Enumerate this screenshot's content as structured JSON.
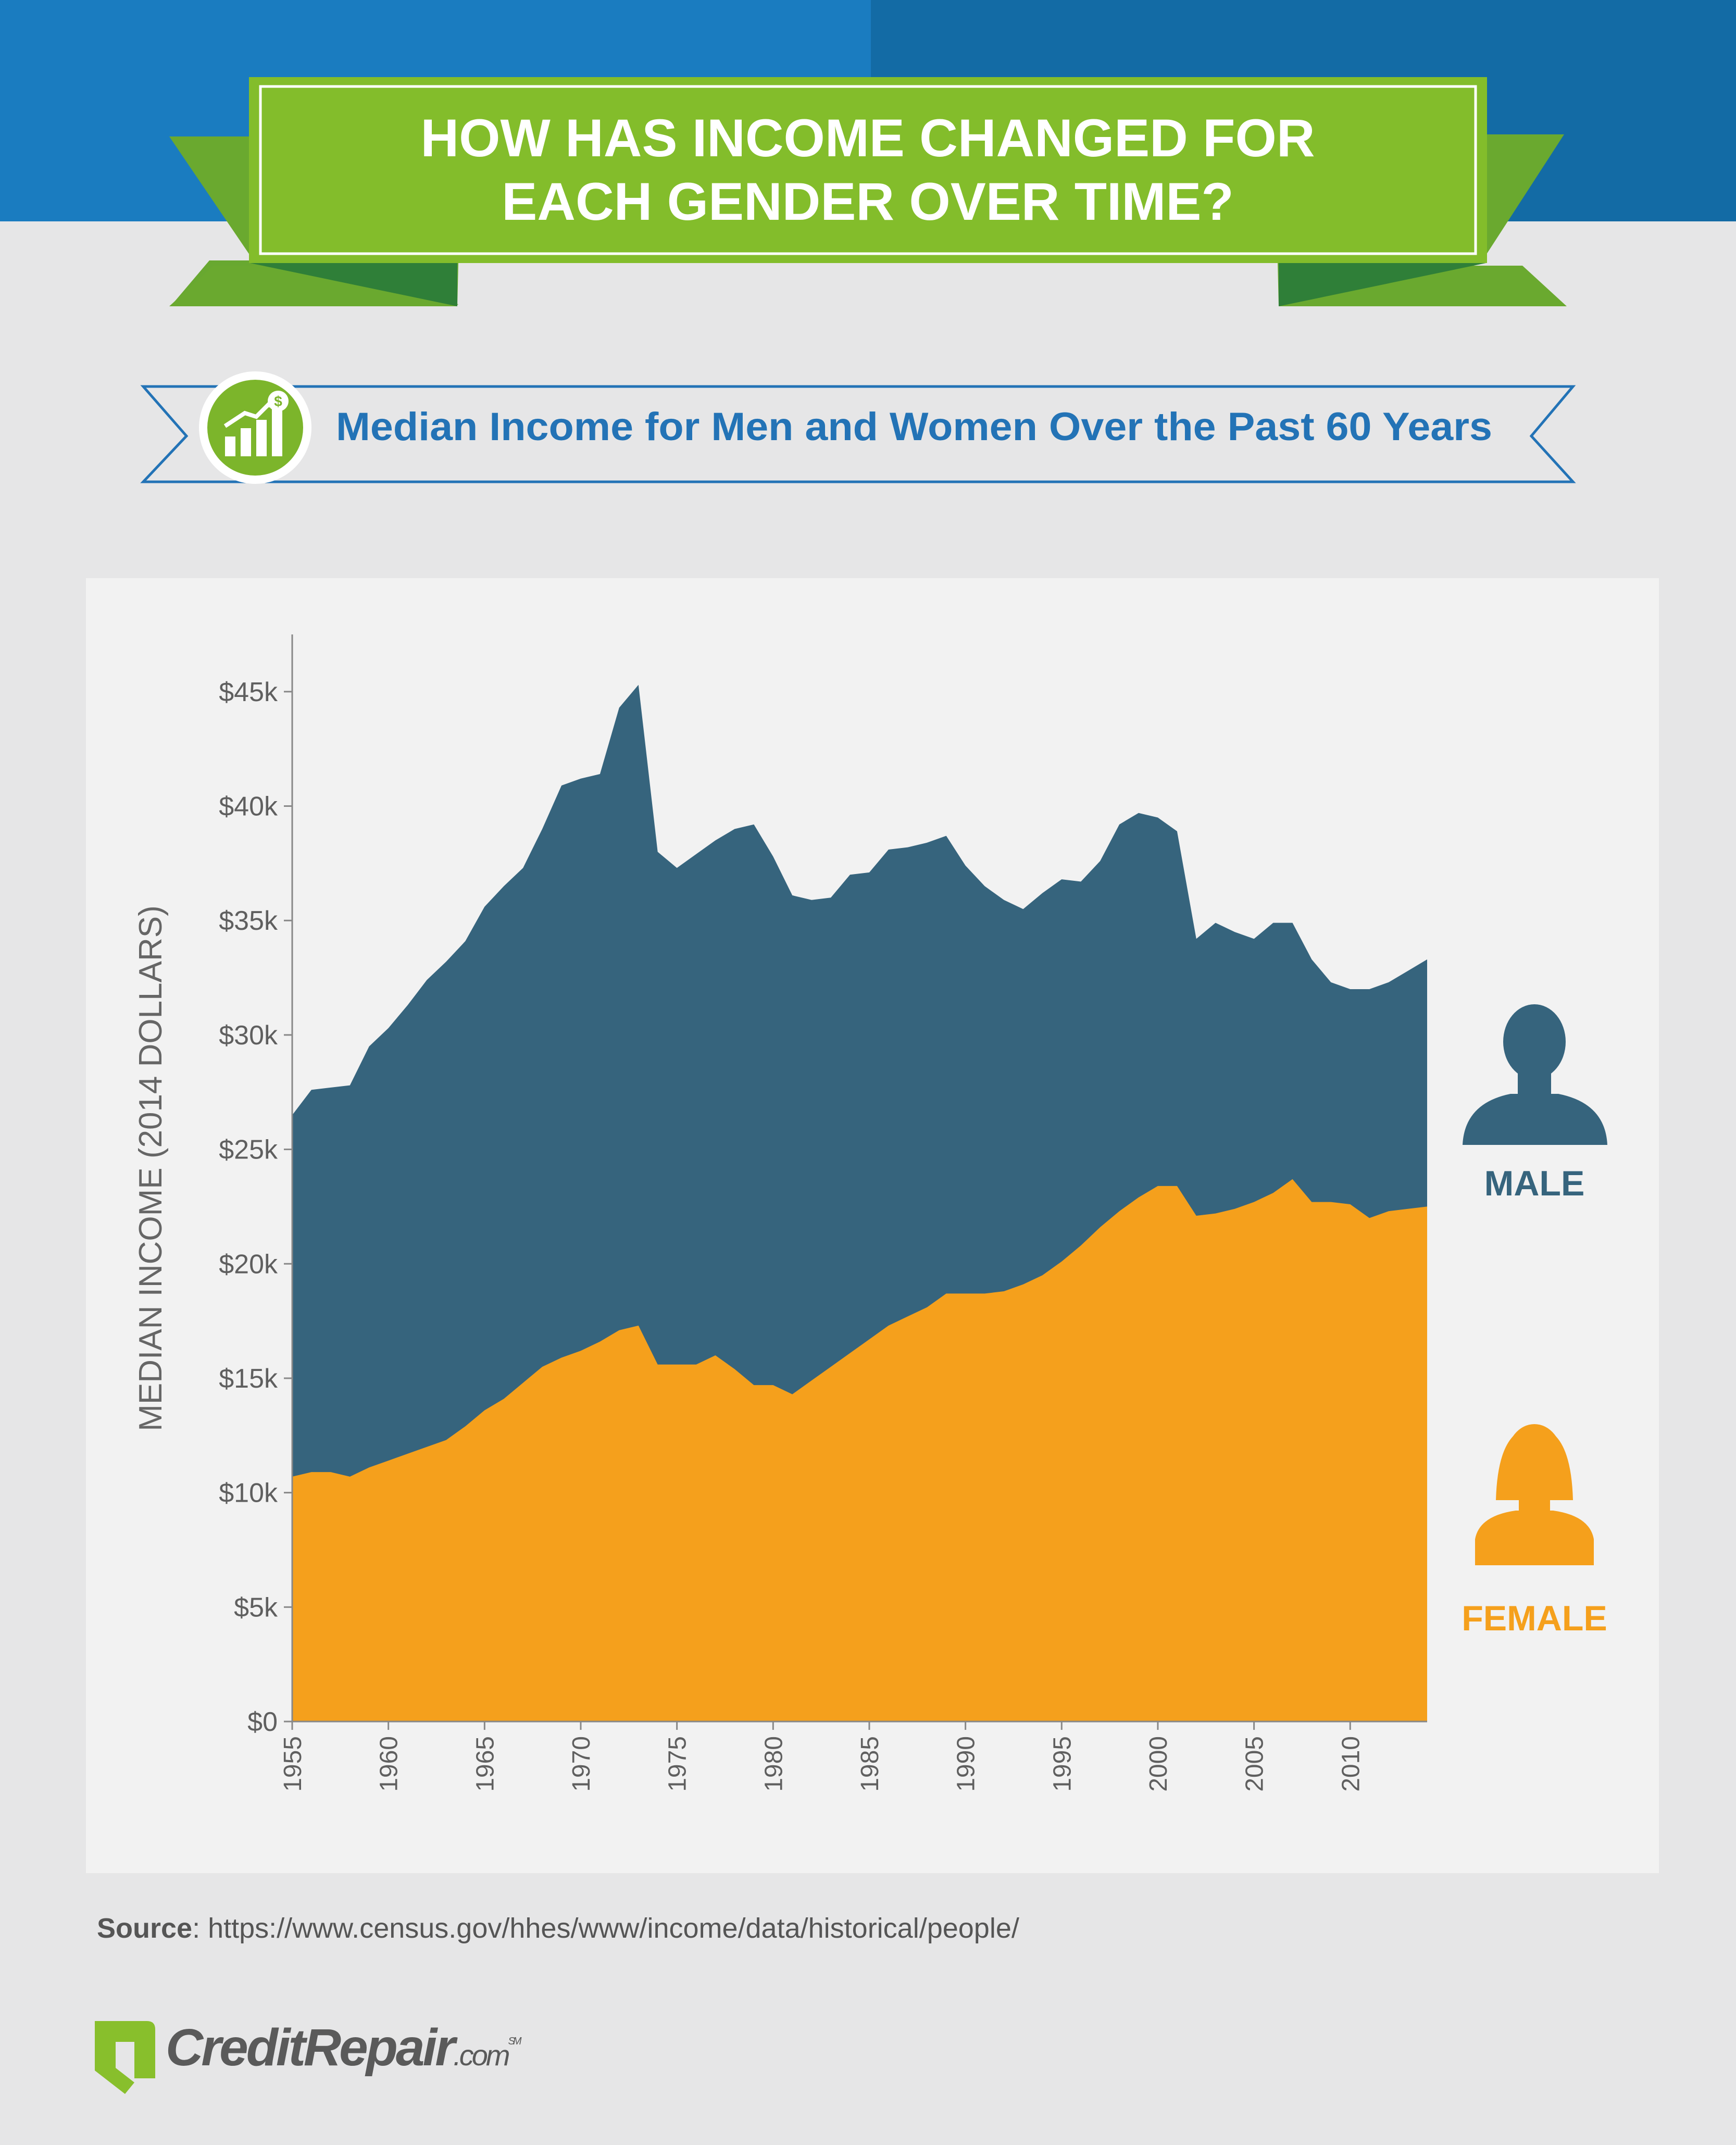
{
  "header": {
    "title_line1": "HOW HAS INCOME CHANGED FOR",
    "title_line2": "EACH GENDER OVER TIME?"
  },
  "subtitle": {
    "text": "Median Income for Men and Women Over the Past 60 Years",
    "icon": "bar-chart-growth-dollar-icon"
  },
  "legend": {
    "male_label": "MALE",
    "female_label": "FEMALE",
    "male_icon": "male-silhouette-icon",
    "female_icon": "female-silhouette-icon"
  },
  "source": {
    "label": "Source",
    "separator": ": ",
    "url": "https://www.census.gov/hhes/www/income/data/historical/people/"
  },
  "brand": {
    "name_main": "CreditRepair",
    "name_suffix": ".com",
    "mark": "SM",
    "logo": "credit-repair-logo-icon"
  },
  "colors": {
    "background": "#e6e6e7",
    "band_left": "#1a7cc0",
    "band_right": "#136ba5",
    "banner_green": "#83bd2b",
    "banner_dark_green": "#5e9c27",
    "subtitle_blue": "#2373b6",
    "chart_panel": "#f2f2f2",
    "male": "#36647d",
    "female": "#f5a01c",
    "axis_text": "#5f5f5f"
  },
  "chart_data": {
    "type": "area",
    "ylabel": "MEDIAN INCOME (2014 DOLLARS)",
    "xlabel": "",
    "ylim": [
      0,
      47500
    ],
    "xlim": [
      1955,
      2014
    ],
    "y_ticks": [
      0,
      5000,
      10000,
      15000,
      20000,
      25000,
      30000,
      35000,
      40000,
      45000
    ],
    "y_tick_labels": [
      "$0",
      "$5k",
      "$10k",
      "$15k",
      "$20k",
      "$25k",
      "$30k",
      "$35k",
      "$40k",
      "$45k"
    ],
    "x_ticks": [
      1955,
      1960,
      1965,
      1970,
      1975,
      1980,
      1985,
      1990,
      1995,
      2000,
      2005,
      2010
    ],
    "x_tick_labels": [
      "1955",
      "1960",
      "1965",
      "1970",
      "1975",
      "1980",
      "1985",
      "1990",
      "1995",
      "2000",
      "2005",
      "2010"
    ],
    "grid": false,
    "x": [
      1955,
      1956,
      1957,
      1958,
      1959,
      1960,
      1961,
      1962,
      1963,
      1964,
      1965,
      1966,
      1967,
      1968,
      1969,
      1970,
      1971,
      1972,
      1973,
      1974,
      1975,
      1976,
      1977,
      1978,
      1979,
      1980,
      1981,
      1982,
      1983,
      1984,
      1985,
      1986,
      1987,
      1988,
      1989,
      1990,
      1991,
      1992,
      1993,
      1994,
      1995,
      1996,
      1997,
      1998,
      1999,
      2000,
      2001,
      2002,
      2003,
      2004,
      2005,
      2006,
      2007,
      2008,
      2009,
      2010,
      2011,
      2012,
      2013,
      2014
    ],
    "series": [
      {
        "name": "MALE",
        "values": [
          26500,
          27600,
          27700,
          27800,
          29500,
          30300,
          31300,
          32400,
          33200,
          34100,
          35600,
          36500,
          37300,
          39000,
          40900,
          41200,
          41400,
          44300,
          45300,
          38000,
          37300,
          37900,
          38500,
          39000,
          39200,
          37800,
          36100,
          35900,
          36000,
          37000,
          37100,
          38100,
          38200,
          38400,
          38700,
          37400,
          36500,
          35900,
          35500,
          36200,
          36800,
          36700,
          37600,
          39200,
          39700,
          39500,
          38900,
          34200,
          34900,
          34500,
          34200,
          34900,
          34900,
          33300,
          32300,
          32000,
          32000,
          32300,
          32800,
          33300
        ]
      },
      {
        "name": "FEMALE",
        "values": [
          10700,
          10900,
          10900,
          10700,
          11100,
          11400,
          11700,
          12000,
          12300,
          12900,
          13600,
          14100,
          14800,
          15500,
          15900,
          16200,
          16600,
          17100,
          17300,
          15600,
          15600,
          15600,
          16000,
          15400,
          14700,
          14700,
          14300,
          14900,
          15500,
          16100,
          16700,
          17300,
          17700,
          18100,
          18700,
          18700,
          18700,
          18800,
          19100,
          19500,
          20100,
          20800,
          21600,
          22300,
          22900,
          23400,
          23400,
          22100,
          22200,
          22400,
          22700,
          23100,
          23700,
          22700,
          22700,
          22600,
          22000,
          22300,
          22400,
          22500
        ]
      }
    ]
  }
}
